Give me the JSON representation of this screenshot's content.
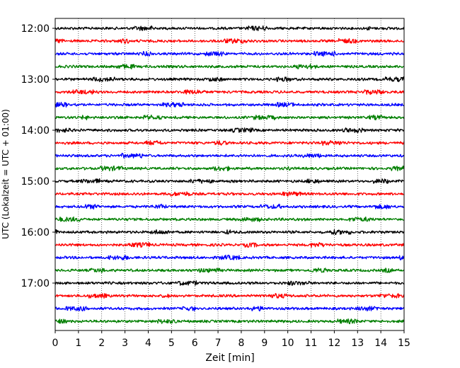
{
  "chart_data": {
    "type": "line",
    "title": "",
    "xlabel": "Zeit  [min]",
    "ylabel": "UTC (Lokalzeit = UTC + 01:00)",
    "xlim": [
      0,
      15
    ],
    "x_ticks": [
      "0",
      "1",
      "2",
      "3",
      "4",
      "5",
      "6",
      "7",
      "8",
      "9",
      "10",
      "11",
      "12",
      "13",
      "14",
      "15"
    ],
    "y_ticks": [
      "12:00",
      "13:00",
      "14:00",
      "15:00",
      "16:00",
      "17:00"
    ],
    "row_interval_min": 15,
    "start_time": "12:00",
    "trace_count": 24,
    "trace_colors": [
      "#000000",
      "#ff0000",
      "#0000ff",
      "#007f00"
    ],
    "vertical_grid": true,
    "grid_style": "dotted"
  }
}
